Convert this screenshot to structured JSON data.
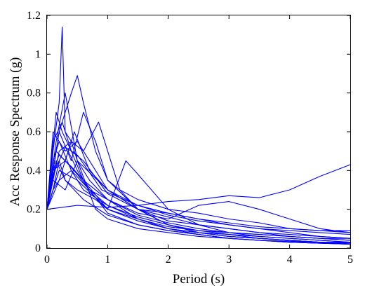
{
  "chart_data": {
    "type": "line",
    "title": "",
    "xlabel": "Period (s)",
    "ylabel": "Acc  Response  Spectrum (g)",
    "xlim": [
      0,
      5
    ],
    "ylim": [
      0,
      1.2
    ],
    "x_ticks": [
      "0",
      "1",
      "2",
      "3",
      "4",
      "5"
    ],
    "y_ticks": [
      "0",
      "0.2",
      "0.4",
      "0.6",
      "0.8",
      "1",
      "1.2"
    ],
    "grid": false,
    "legend": "none",
    "line_color": "#0000ff",
    "series": [
      {
        "x": [
          0,
          0.1,
          0.2,
          0.25,
          0.3,
          0.4,
          0.5,
          0.7,
          1,
          1.5,
          2,
          2.5,
          3,
          3.5,
          4,
          4.5,
          5
        ],
        "y": [
          0.2,
          0.5,
          0.75,
          1.14,
          0.6,
          0.55,
          0.45,
          0.35,
          0.25,
          0.15,
          0.1,
          0.07,
          0.05,
          0.04,
          0.03,
          0.025,
          0.02
        ]
      },
      {
        "x": [
          0,
          0.1,
          0.2,
          0.3,
          0.4,
          0.5,
          0.6,
          0.8,
          1,
          1.5,
          2,
          2.5,
          3,
          3.5,
          4,
          4.5,
          5
        ],
        "y": [
          0.2,
          0.4,
          0.6,
          0.7,
          0.8,
          0.89,
          0.75,
          0.5,
          0.35,
          0.2,
          0.12,
          0.08,
          0.06,
          0.05,
          0.04,
          0.03,
          0.025
        ]
      },
      {
        "x": [
          0,
          0.1,
          0.2,
          0.4,
          0.6,
          0.85,
          1,
          1.2,
          1.5,
          2,
          2.5,
          3,
          3.5,
          4,
          4.5,
          5
        ],
        "y": [
          0.2,
          0.35,
          0.5,
          0.55,
          0.5,
          0.65,
          0.5,
          0.3,
          0.2,
          0.12,
          0.08,
          0.06,
          0.05,
          0.04,
          0.03,
          0.025
        ]
      },
      {
        "x": [
          0,
          0.1,
          0.2,
          0.5,
          1,
          1.3,
          1.5,
          2,
          2.5,
          3,
          3.5,
          4,
          4.5,
          5
        ],
        "y": [
          0.2,
          0.3,
          0.4,
          0.35,
          0.2,
          0.45,
          0.38,
          0.2,
          0.12,
          0.08,
          0.06,
          0.05,
          0.04,
          0.03
        ]
      },
      {
        "x": [
          0,
          0.5,
          1,
          1.5,
          2,
          2.5,
          3,
          3.5,
          4,
          4.5,
          5
        ],
        "y": [
          0.2,
          0.22,
          0.21,
          0.22,
          0.24,
          0.25,
          0.27,
          0.26,
          0.3,
          0.37,
          0.43
        ]
      },
      {
        "x": [
          0,
          0.15,
          0.3,
          0.5,
          1,
          1.5,
          2,
          2.5,
          3,
          3.5,
          4,
          4.5,
          5
        ],
        "y": [
          0.2,
          0.55,
          0.8,
          0.45,
          0.3,
          0.2,
          0.18,
          0.15,
          0.12,
          0.1,
          0.08,
          0.06,
          0.05
        ]
      },
      {
        "x": [
          0,
          0.1,
          0.3,
          0.5,
          0.8,
          1,
          1.5,
          2,
          2.5,
          3,
          3.5,
          4,
          4.5,
          5
        ],
        "y": [
          0.2,
          0.6,
          0.5,
          0.55,
          0.4,
          0.3,
          0.2,
          0.14,
          0.12,
          0.1,
          0.08,
          0.07,
          0.06,
          0.05
        ]
      },
      {
        "x": [
          0,
          0.1,
          0.2,
          0.4,
          0.7,
          1,
          1.5,
          2,
          2.5,
          3,
          3.5,
          4,
          4.5,
          5
        ],
        "y": [
          0.2,
          0.45,
          0.55,
          0.4,
          0.3,
          0.25,
          0.18,
          0.15,
          0.22,
          0.24,
          0.2,
          0.15,
          0.1,
          0.08
        ]
      },
      {
        "x": [
          0,
          0.1,
          0.3,
          0.5,
          0.7,
          1,
          1.5,
          2,
          2.5,
          3,
          3.5,
          4,
          4.5,
          5
        ],
        "y": [
          0.2,
          0.4,
          0.45,
          0.38,
          0.3,
          0.22,
          0.15,
          0.1,
          0.08,
          0.07,
          0.06,
          0.05,
          0.04,
          0.03
        ]
      },
      {
        "x": [
          0,
          0.15,
          0.25,
          0.4,
          0.6,
          1,
          1.5,
          2,
          2.5,
          3,
          3.5,
          4,
          4.5,
          5
        ],
        "y": [
          0.2,
          0.7,
          0.6,
          0.5,
          0.45,
          0.28,
          0.2,
          0.16,
          0.12,
          0.1,
          0.08,
          0.06,
          0.05,
          0.04
        ]
      },
      {
        "x": [
          0,
          0.1,
          0.2,
          0.35,
          0.5,
          0.7,
          1,
          1.5,
          2,
          2.5,
          3,
          3.5,
          4,
          4.5,
          5
        ],
        "y": [
          0.2,
          0.3,
          0.35,
          0.5,
          0.4,
          0.3,
          0.18,
          0.12,
          0.09,
          0.07,
          0.05,
          0.04,
          0.03,
          0.025,
          0.02
        ]
      },
      {
        "x": [
          0,
          0.2,
          0.4,
          0.6,
          0.8,
          1,
          1.2,
          1.5,
          2,
          2.5,
          3,
          3.5,
          4,
          4.5,
          5
        ],
        "y": [
          0.2,
          0.6,
          0.45,
          0.7,
          0.55,
          0.35,
          0.3,
          0.25,
          0.2,
          0.18,
          0.15,
          0.13,
          0.1,
          0.09,
          0.08
        ]
      },
      {
        "x": [
          0,
          0.1,
          0.2,
          0.4,
          0.6,
          1,
          1.5,
          2,
          2.5,
          3,
          3.5,
          4,
          4.5,
          5
        ],
        "y": [
          0.2,
          0.4,
          0.48,
          0.42,
          0.35,
          0.25,
          0.17,
          0.13,
          0.1,
          0.08,
          0.07,
          0.06,
          0.05,
          0.04
        ]
      },
      {
        "x": [
          0,
          0.1,
          0.3,
          0.5,
          0.8,
          1,
          1.5,
          2,
          2.5,
          3,
          3.5,
          4,
          4.5,
          5
        ],
        "y": [
          0.2,
          0.35,
          0.3,
          0.45,
          0.2,
          0.15,
          0.1,
          0.08,
          0.06,
          0.05,
          0.04,
          0.03,
          0.025,
          0.02
        ]
      },
      {
        "x": [
          0,
          0.15,
          0.3,
          0.45,
          0.7,
          1,
          1.5,
          2,
          2.5,
          3,
          3.5,
          4,
          4.5,
          5
        ],
        "y": [
          0.2,
          0.5,
          0.45,
          0.6,
          0.4,
          0.3,
          0.22,
          0.17,
          0.14,
          0.12,
          0.1,
          0.09,
          0.08,
          0.07
        ]
      },
      {
        "x": [
          0,
          0.1,
          0.2,
          0.3,
          0.5,
          0.8,
          1,
          1.5,
          2,
          2.5,
          3,
          3.5,
          4,
          4.5,
          5
        ],
        "y": [
          0.2,
          0.3,
          0.45,
          0.35,
          0.3,
          0.25,
          0.2,
          0.15,
          0.11,
          0.09,
          0.08,
          0.07,
          0.06,
          0.05,
          0.05
        ]
      },
      {
        "x": [
          0,
          0.1,
          0.25,
          0.4,
          0.6,
          1,
          1.5,
          2,
          2.5,
          3,
          3.5,
          4,
          4.5,
          5
        ],
        "y": [
          0.2,
          0.55,
          0.65,
          0.5,
          0.35,
          0.2,
          0.14,
          0.1,
          0.08,
          0.06,
          0.05,
          0.04,
          0.03,
          0.025
        ]
      },
      {
        "x": [
          0,
          0.2,
          0.4,
          0.6,
          1,
          1.5,
          2,
          2.5,
          3,
          3.5,
          4,
          4.5,
          5
        ],
        "y": [
          0.2,
          0.35,
          0.4,
          0.3,
          0.22,
          0.16,
          0.12,
          0.09,
          0.07,
          0.05,
          0.04,
          0.03,
          0.02
        ]
      },
      {
        "x": [
          0,
          0.1,
          0.3,
          0.5,
          0.9,
          1.2,
          1.5,
          2,
          2.5,
          3,
          3.5,
          4,
          4.5,
          5
        ],
        "y": [
          0.2,
          0.38,
          0.52,
          0.48,
          0.3,
          0.26,
          0.22,
          0.18,
          0.15,
          0.13,
          0.11,
          0.1,
          0.09,
          0.09
        ]
      },
      {
        "x": [
          0,
          0.15,
          0.3,
          0.6,
          1,
          1.5,
          2,
          2.5,
          3,
          3.5,
          4,
          4.5,
          5
        ],
        "y": [
          0.2,
          0.45,
          0.35,
          0.25,
          0.17,
          0.12,
          0.09,
          0.07,
          0.05,
          0.04,
          0.035,
          0.03,
          0.03
        ]
      }
    ]
  }
}
